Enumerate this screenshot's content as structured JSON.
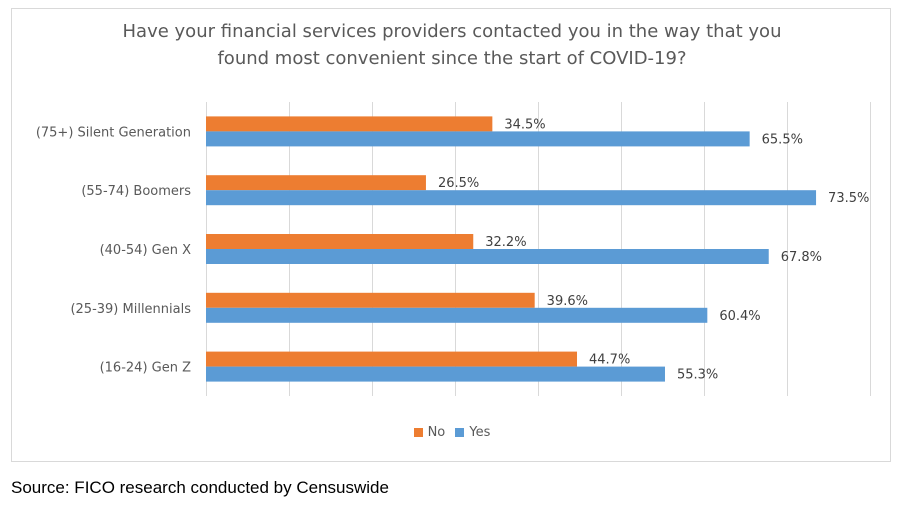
{
  "chart_data": {
    "type": "bar",
    "orientation": "horizontal",
    "title_lines": [
      "Have your financial services providers contacted you in the way that you",
      "found most convenient since the start of COVID-19?"
    ],
    "categories": [
      "(75+) Silent Generation",
      "(55-74) Boomers",
      "(40-54) Gen X",
      "(25-39) Millennials",
      "(16-24) Gen Z"
    ],
    "series": [
      {
        "name": "No",
        "color": "#ed7d31",
        "values": [
          34.5,
          26.5,
          32.2,
          39.6,
          44.7
        ],
        "labels": [
          "34.5%",
          "26.5%",
          "32.2%",
          "39.6%",
          "44.7%"
        ]
      },
      {
        "name": "Yes",
        "color": "#5b9bd5",
        "values": [
          65.5,
          73.5,
          67.8,
          60.4,
          55.3
        ],
        "labels": [
          "65.5%",
          "73.5%",
          "67.8%",
          "60.4%",
          "55.3%"
        ]
      }
    ],
    "xlim": [
      0,
      80
    ],
    "grid": "vertical",
    "legend_position": "bottom"
  },
  "source": "Source: FICO research conducted by Censuswide"
}
